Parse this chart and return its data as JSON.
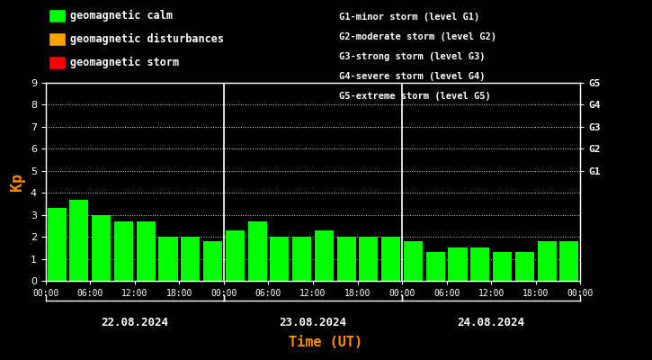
{
  "background_color": "#000000",
  "bar_color": "#00ff00",
  "axis_color": "#ffffff",
  "text_color": "#ffffff",
  "kp_label_color": "#ff8c00",
  "time_label_color": "#ff8c00",
  "title_color": "#ff8c00",
  "grid_color": "#ffffff",
  "day1_label": "22.08.2024",
  "day2_label": "23.08.2024",
  "day3_label": "24.08.2024",
  "xlabel": "Time (UT)",
  "ylabel": "Kp",
  "ylim": [
    0,
    9
  ],
  "yticks": [
    0,
    1,
    2,
    3,
    4,
    5,
    6,
    7,
    8,
    9
  ],
  "legend_entries": [
    {
      "label": "geomagnetic calm",
      "color": "#00ff00"
    },
    {
      "label": "geomagnetic disturbances",
      "color": "#ffa500"
    },
    {
      "label": "geomagnetic storm",
      "color": "#ff0000"
    }
  ],
  "right_labels": [
    {
      "y": 9,
      "text": "G5"
    },
    {
      "y": 8,
      "text": "G4"
    },
    {
      "y": 7,
      "text": "G3"
    },
    {
      "y": 6,
      "text": "G2"
    },
    {
      "y": 5,
      "text": "G1"
    }
  ],
  "right_annotations": [
    "G1-minor storm (level G1)",
    "G2-moderate storm (level G2)",
    "G3-strong storm (level G3)",
    "G4-severe storm (level G4)",
    "G5-extreme storm (level G5)"
  ],
  "bars": [
    3.3,
    3.7,
    3.0,
    2.7,
    2.7,
    2.0,
    2.0,
    1.8,
    2.3,
    2.7,
    2.0,
    2.0,
    2.3,
    2.0,
    2.0,
    2.0,
    1.8,
    1.3,
    1.5,
    1.5,
    1.3,
    1.3,
    1.8,
    1.8
  ],
  "n_per_day": 8,
  "hours_per_bar": 3
}
